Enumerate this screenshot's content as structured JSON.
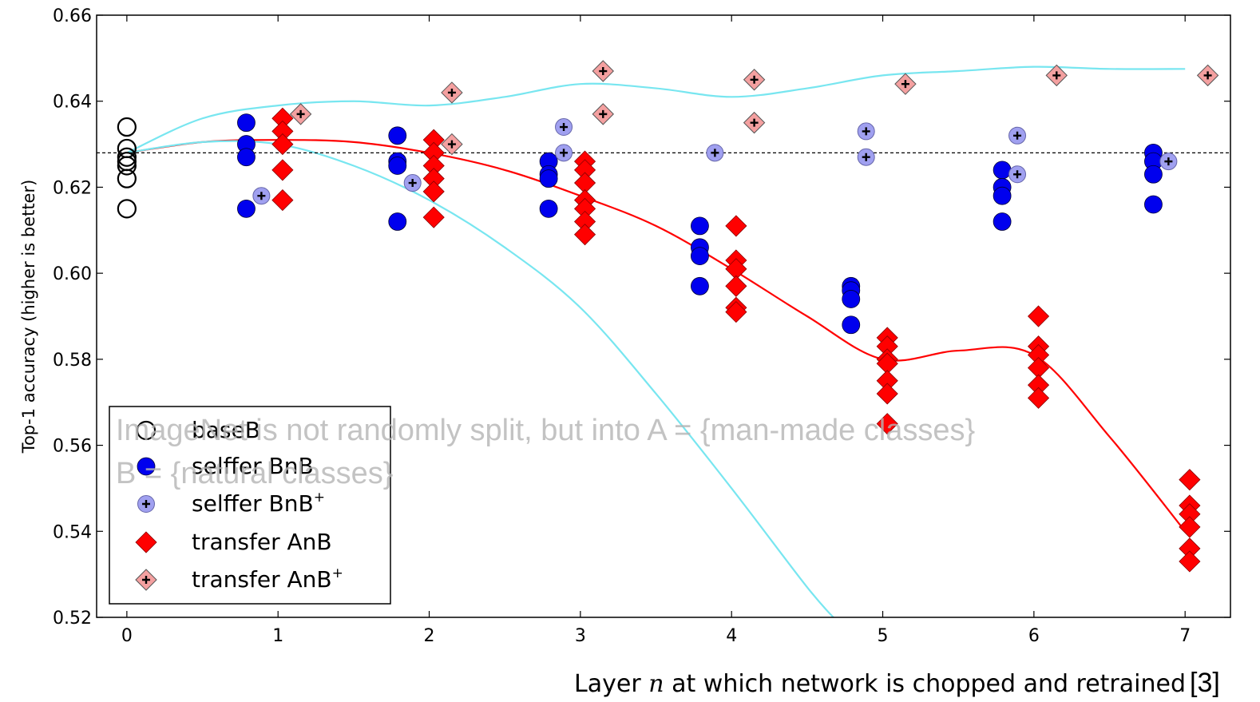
{
  "chart_data": {
    "type": "scatter",
    "title": "",
    "xlabel_prefix": "Layer ",
    "xlabel_var": "n",
    "xlabel_suffix": " at which network is chopped and retrained",
    "reference": "[3]",
    "ylabel": "Top-1 accuracy (higher is better)",
    "xlim": [
      -0.2,
      7.3
    ],
    "ylim": [
      0.52,
      0.66
    ],
    "xticks": [
      0,
      1,
      2,
      3,
      4,
      5,
      6,
      7
    ],
    "yticks": [
      "0.52",
      "0.54",
      "0.56",
      "0.58",
      "0.60",
      "0.62",
      "0.64",
      "0.66"
    ],
    "baseline": 0.628,
    "grid": false,
    "legend_position": "lower-left",
    "overlay_line1": "ImageNet is not randomly split, but into A = {man-made classes}",
    "overlay_line2": "B = {natural classes}",
    "series": [
      {
        "name": "baseB",
        "marker": "circle-open",
        "color": "#000000",
        "points": [
          [
            0,
            0.634
          ],
          [
            0,
            0.629
          ],
          [
            0,
            0.627
          ],
          [
            0,
            0.626
          ],
          [
            0,
            0.625
          ],
          [
            0,
            0.622
          ],
          [
            0,
            0.615
          ]
        ]
      },
      {
        "name": "selffer BnB",
        "marker": "circle",
        "color": "#0000ee",
        "points": [
          [
            1,
            0.635
          ],
          [
            1,
            0.63
          ],
          [
            1,
            0.627
          ],
          [
            1,
            0.615
          ],
          [
            2,
            0.632
          ],
          [
            2,
            0.626
          ],
          [
            2,
            0.625
          ],
          [
            2,
            0.612
          ],
          [
            3,
            0.626
          ],
          [
            3,
            0.623
          ],
          [
            3,
            0.622
          ],
          [
            3,
            0.615
          ],
          [
            4,
            0.611
          ],
          [
            4,
            0.606
          ],
          [
            4,
            0.604
          ],
          [
            4,
            0.597
          ],
          [
            5,
            0.597
          ],
          [
            5,
            0.596
          ],
          [
            5,
            0.594
          ],
          [
            5,
            0.588
          ],
          [
            6,
            0.624
          ],
          [
            6,
            0.62
          ],
          [
            6,
            0.618
          ],
          [
            6,
            0.612
          ],
          [
            7,
            0.628
          ],
          [
            7,
            0.626
          ],
          [
            7,
            0.623
          ],
          [
            7,
            0.616
          ]
        ]
      },
      {
        "name": "selffer BnB",
        "name_sup": "+",
        "marker": "circle-plus",
        "color": "#a0a0f0",
        "points": [
          [
            1,
            0.618
          ],
          [
            2,
            0.621
          ],
          [
            3,
            0.634
          ],
          [
            3,
            0.628
          ],
          [
            4,
            0.628
          ],
          [
            5,
            0.633
          ],
          [
            5,
            0.627
          ],
          [
            6,
            0.632
          ],
          [
            6,
            0.623
          ],
          [
            7,
            0.626
          ]
        ]
      },
      {
        "name": "transfer AnB",
        "marker": "diamond",
        "color": "#ff0000",
        "points": [
          [
            1,
            0.636
          ],
          [
            1,
            0.633
          ],
          [
            1,
            0.63
          ],
          [
            1,
            0.624
          ],
          [
            1,
            0.617
          ],
          [
            2,
            0.631
          ],
          [
            2,
            0.628
          ],
          [
            2,
            0.625
          ],
          [
            2,
            0.622
          ],
          [
            2,
            0.619
          ],
          [
            2,
            0.613
          ],
          [
            3,
            0.626
          ],
          [
            3,
            0.624
          ],
          [
            3,
            0.621
          ],
          [
            3,
            0.617
          ],
          [
            3,
            0.615
          ],
          [
            3,
            0.612
          ],
          [
            3,
            0.609
          ],
          [
            4,
            0.611
          ],
          [
            4,
            0.603
          ],
          [
            4,
            0.601
          ],
          [
            4,
            0.597
          ],
          [
            4,
            0.592
          ],
          [
            4,
            0.591
          ],
          [
            5,
            0.585
          ],
          [
            5,
            0.583
          ],
          [
            5,
            0.58
          ],
          [
            5,
            0.579
          ],
          [
            5,
            0.575
          ],
          [
            5,
            0.572
          ],
          [
            5,
            0.565
          ],
          [
            6,
            0.59
          ],
          [
            6,
            0.583
          ],
          [
            6,
            0.581
          ],
          [
            6,
            0.578
          ],
          [
            6,
            0.574
          ],
          [
            6,
            0.571
          ],
          [
            7,
            0.552
          ],
          [
            7,
            0.546
          ],
          [
            7,
            0.544
          ],
          [
            7,
            0.541
          ],
          [
            7,
            0.536
          ],
          [
            7,
            0.533
          ]
        ]
      },
      {
        "name": "transfer AnB",
        "name_sup": "+",
        "marker": "diamond-plus",
        "color": "#f4a0a0",
        "points": [
          [
            1,
            0.637
          ],
          [
            2,
            0.642
          ],
          [
            2,
            0.63
          ],
          [
            3,
            0.647
          ],
          [
            3,
            0.637
          ],
          [
            4,
            0.645
          ],
          [
            4,
            0.635
          ],
          [
            5,
            0.644
          ],
          [
            6,
            0.646
          ],
          [
            7,
            0.646
          ]
        ]
      }
    ],
    "trend_lines": [
      {
        "color": "#ff0000",
        "points": [
          [
            0,
            0.628
          ],
          [
            0.5,
            0.6305
          ],
          [
            1,
            0.631
          ],
          [
            1.5,
            0.6305
          ],
          [
            2,
            0.628
          ],
          [
            2.5,
            0.624
          ],
          [
            3,
            0.618
          ],
          [
            3.5,
            0.611
          ],
          [
            4,
            0.601
          ],
          [
            4.5,
            0.59
          ],
          [
            5,
            0.58
          ],
          [
            5.5,
            0.582
          ],
          [
            6,
            0.581
          ],
          [
            6.5,
            0.562
          ],
          [
            7,
            0.54
          ]
        ]
      },
      {
        "color": "#78e6f0",
        "points": [
          [
            0,
            0.628
          ],
          [
            0.5,
            0.636
          ],
          [
            1,
            0.639
          ],
          [
            1.5,
            0.64
          ],
          [
            2,
            0.639
          ],
          [
            2.5,
            0.641
          ],
          [
            3,
            0.644
          ],
          [
            3.5,
            0.643
          ],
          [
            4,
            0.641
          ],
          [
            4.5,
            0.643
          ],
          [
            5,
            0.646
          ],
          [
            5.5,
            0.647
          ],
          [
            6,
            0.648
          ],
          [
            6.5,
            0.6475
          ],
          [
            7,
            0.6475
          ]
        ]
      },
      {
        "color": "#78e6f0",
        "points": [
          [
            0,
            0.628
          ],
          [
            0.5,
            0.6305
          ],
          [
            1,
            0.63
          ],
          [
            1.5,
            0.625
          ],
          [
            2,
            0.617
          ],
          [
            2.5,
            0.606
          ],
          [
            3,
            0.592
          ],
          [
            3.5,
            0.572
          ],
          [
            4,
            0.55
          ],
          [
            4.5,
            0.527
          ],
          [
            4.7,
            0.519
          ]
        ]
      }
    ]
  }
}
